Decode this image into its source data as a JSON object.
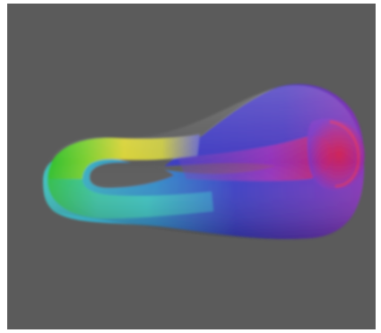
{
  "scene": {
    "background_color": "#5b5b5b",
    "page_color": "#ffffff",
    "subject": "klein-bottle-surface",
    "colors": {
      "green": "#2fbf2f",
      "yellow": "#d9d33a",
      "cyan": "#3cc6c4",
      "blue": "#3a3ccc",
      "violet": "#7a34c4",
      "magenta": "#b530b8",
      "red": "#d8204a"
    }
  }
}
